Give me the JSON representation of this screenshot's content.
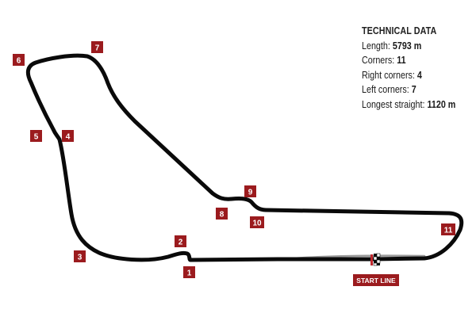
{
  "technical_data": {
    "title": "TECHNICAL DATA",
    "rows": [
      {
        "label": "Length: ",
        "value": "5793 m"
      },
      {
        "label": "Corners: ",
        "value": "11"
      },
      {
        "label": "Right corners: ",
        "value": "4"
      },
      {
        "label": "Left corners: ",
        "value": "7"
      },
      {
        "label": "Longest straight: ",
        "value": "1120 m"
      }
    ]
  },
  "corners": [
    "1",
    "2",
    "3",
    "4",
    "5",
    "6",
    "7",
    "8",
    "9",
    "10",
    "11"
  ],
  "start_line": {
    "label": "START LINE"
  },
  "colors": {
    "track": "#0a0a0a",
    "marker": "#9b1b1e",
    "marker_text": "#ffffff",
    "straight_gray": "#9a9a9a",
    "start_flag": "#c0272d"
  }
}
